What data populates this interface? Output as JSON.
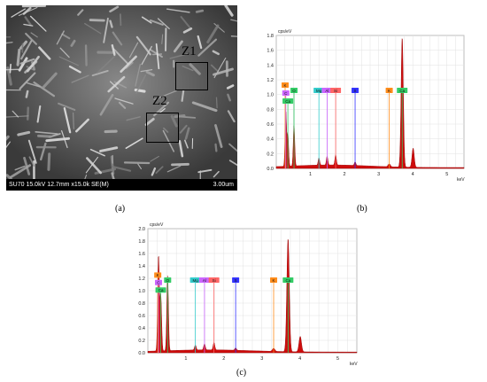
{
  "panels": {
    "a": {
      "caption": "(a)",
      "sem_info": "SU70 15.0kV 12.7mm x15.0k SE(M)",
      "scale_bar": "3.00um",
      "zones": [
        {
          "label": "Z1"
        },
        {
          "label": "Z2"
        }
      ]
    },
    "b": {
      "caption": "(b)"
    },
    "c": {
      "caption": "(c)"
    }
  },
  "colors": {
    "spectrum": "#cc0000",
    "K": "#ff8c1a",
    "C": "#cc66ff",
    "O": "#33cc66",
    "Ca": "#33cc66",
    "Mg": "#33cccc",
    "Al": "#cc66ff",
    "Si": "#ff6666",
    "S": "#3333ff"
  },
  "chart_data": [
    {
      "type": "line",
      "ylabel": "cps/eV",
      "xlabel": "keV",
      "xlim": [
        0,
        5.5
      ],
      "ylim": [
        0,
        1.8
      ],
      "yticks": [
        "0.0",
        "0.2",
        "0.4",
        "0.6",
        "0.8",
        "1.0",
        "1.2",
        "1.4",
        "1.6",
        "1.8"
      ],
      "xticks": [
        "1",
        "2",
        "3",
        "4",
        "5"
      ],
      "peaks": [
        {
          "e": 0.28,
          "h": 0.75
        },
        {
          "e": 0.34,
          "h": 0.45
        },
        {
          "e": 0.52,
          "h": 0.55
        },
        {
          "e": 1.25,
          "h": 0.1
        },
        {
          "e": 1.49,
          "h": 0.12
        },
        {
          "e": 1.74,
          "h": 0.14
        },
        {
          "e": 2.31,
          "h": 0.05
        },
        {
          "e": 3.31,
          "h": 0.04
        },
        {
          "e": 3.69,
          "h": 1.76
        },
        {
          "e": 4.01,
          "h": 0.26
        }
      ],
      "element_markers": [
        {
          "label": "K",
          "e": 0.26,
          "color": "#ff8c1a"
        },
        {
          "label": "C",
          "e": 0.28,
          "color": "#cc66ff"
        },
        {
          "label": "Ca",
          "e": 0.34,
          "color": "#33cc66"
        },
        {
          "label": "O",
          "e": 0.52,
          "color": "#33cc66"
        },
        {
          "label": "Mg",
          "e": 1.25,
          "color": "#33cccc"
        },
        {
          "label": "Al",
          "e": 1.49,
          "color": "#cc66ff"
        },
        {
          "label": "Si",
          "e": 1.74,
          "color": "#ff6666"
        },
        {
          "label": "S",
          "e": 2.31,
          "color": "#3333ff"
        },
        {
          "label": "K",
          "e": 3.31,
          "color": "#ff8c1a"
        },
        {
          "label": "Ca",
          "e": 3.69,
          "color": "#33cc66"
        }
      ]
    },
    {
      "type": "line",
      "ylabel": "cps/eV",
      "xlabel": "keV",
      "xlim": [
        0,
        5.5
      ],
      "ylim": [
        0,
        2.0
      ],
      "yticks": [
        "0.0",
        "0.2",
        "0.4",
        "0.6",
        "0.8",
        "1.0",
        "1.2",
        "1.4",
        "1.6",
        "1.8",
        "2.0"
      ],
      "xticks": [
        "1",
        "2",
        "3",
        "4",
        "5"
      ],
      "peaks": [
        {
          "e": 0.28,
          "h": 1.55
        },
        {
          "e": 0.34,
          "h": 0.9
        },
        {
          "e": 0.52,
          "h": 1.22
        },
        {
          "e": 1.25,
          "h": 0.08
        },
        {
          "e": 1.49,
          "h": 0.1
        },
        {
          "e": 1.74,
          "h": 0.12
        },
        {
          "e": 2.31,
          "h": 0.04
        },
        {
          "e": 3.31,
          "h": 0.05
        },
        {
          "e": 3.69,
          "h": 1.83
        },
        {
          "e": 4.01,
          "h": 0.25
        }
      ],
      "element_markers": [
        {
          "label": "K",
          "e": 0.26,
          "color": "#ff8c1a"
        },
        {
          "label": "C",
          "e": 0.28,
          "color": "#cc66ff"
        },
        {
          "label": "Ca",
          "e": 0.34,
          "color": "#33cc66"
        },
        {
          "label": "O",
          "e": 0.52,
          "color": "#33cc66"
        },
        {
          "label": "Mg",
          "e": 1.25,
          "color": "#33cccc"
        },
        {
          "label": "Al",
          "e": 1.49,
          "color": "#cc66ff"
        },
        {
          "label": "Si",
          "e": 1.74,
          "color": "#ff6666"
        },
        {
          "label": "S",
          "e": 2.31,
          "color": "#3333ff"
        },
        {
          "label": "K",
          "e": 3.31,
          "color": "#ff8c1a"
        },
        {
          "label": "Ca",
          "e": 3.69,
          "color": "#33cc66"
        }
      ]
    }
  ]
}
